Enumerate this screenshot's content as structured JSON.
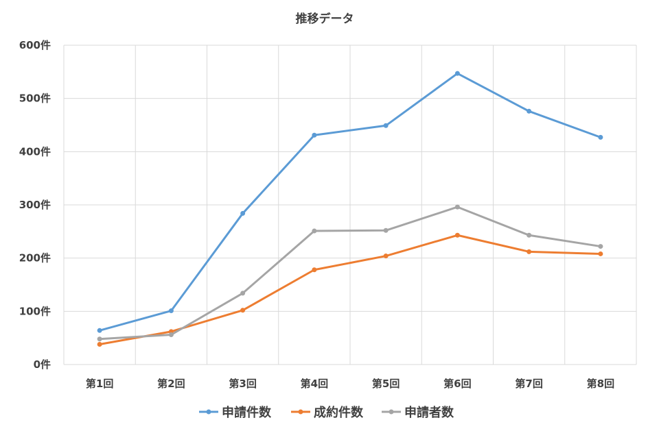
{
  "chart_data": {
    "type": "line",
    "title": "推移データ",
    "xlabel": "",
    "ylabel": "",
    "categories": [
      "第1回",
      "第2回",
      "第3回",
      "第4回",
      "第5回",
      "第6回",
      "第7回",
      "第8回"
    ],
    "yticks": [
      "0件",
      "100件",
      "200件",
      "300件",
      "400件",
      "500件",
      "600件"
    ],
    "ylim": [
      0,
      600
    ],
    "grid": true,
    "legend_position": "bottom",
    "series": [
      {
        "name": "申請件数",
        "color": "#5b9bd5",
        "values": [
          64,
          101,
          284,
          431,
          449,
          547,
          476,
          427
        ]
      },
      {
        "name": "成約件数",
        "color": "#ed7d31",
        "values": [
          38,
          62,
          102,
          178,
          204,
          243,
          212,
          208
        ]
      },
      {
        "name": "申請者数",
        "color": "#a5a5a5",
        "values": [
          48,
          56,
          134,
          251,
          252,
          296,
          243,
          222
        ]
      }
    ]
  }
}
